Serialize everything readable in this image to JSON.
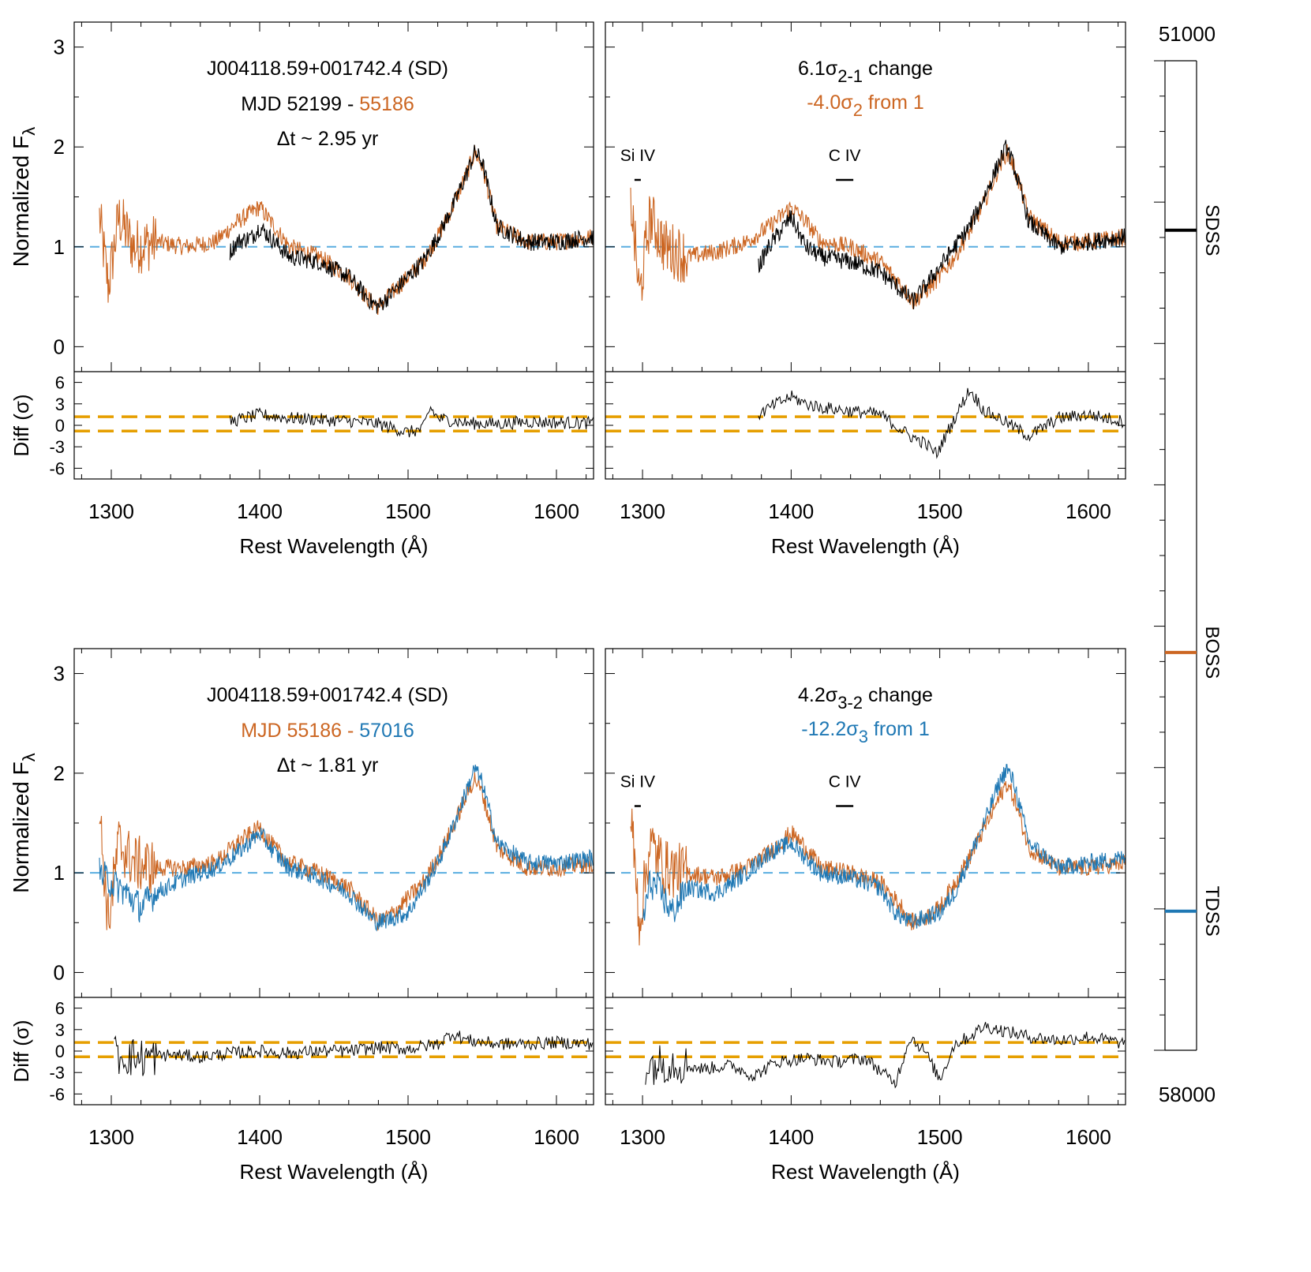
{
  "figure": {
    "timeline": {
      "top_label": "51000",
      "bottom_label": "58000",
      "range": [
        51000,
        58000
      ],
      "markers": [
        {
          "label": "SDSS",
          "mjd": 52199,
          "color": "#000000"
        },
        {
          "label": "BOSS",
          "mjd": 55186,
          "color": "#cc6622"
        },
        {
          "label": "TDSS",
          "mjd": 57016,
          "color": "#1f78b4"
        }
      ]
    }
  },
  "chart_data": [
    {
      "type": "line",
      "title_lines": [
        "J004118.59+001742.4 (SD)",
        "MJD 52199 - 55186",
        "Δt ~ 2.95 yr"
      ],
      "mjd_a": "MJD 52199 -",
      "mjd_b": "55186",
      "ylabel": "Normalized Fλ",
      "xlabel": "Rest Wavelength (Å)",
      "xlim": [
        1275,
        1625
      ],
      "ylim": [
        -0.25,
        3.25
      ],
      "xticks": [
        1300,
        1400,
        1500,
        1600
      ],
      "yticks": [
        0,
        1,
        2,
        3
      ],
      "reference_line": 1,
      "series": [
        {
          "color": "#cc6622",
          "x": [
            1292,
            1298,
            1305,
            1315,
            1330,
            1350,
            1370,
            1385,
            1400,
            1410,
            1420,
            1440,
            1460,
            1475,
            1480,
            1490,
            1500,
            1510,
            1520,
            1530,
            1540,
            1545,
            1550,
            1560,
            1580,
            1600,
            1625
          ],
          "y": [
            1.3,
            0.6,
            1.3,
            1.0,
            1.05,
            1.0,
            1.05,
            1.25,
            1.4,
            1.2,
            1.0,
            0.9,
            0.7,
            0.45,
            0.4,
            0.55,
            0.7,
            0.85,
            1.1,
            1.4,
            1.75,
            1.95,
            1.8,
            1.2,
            1.05,
            1.05,
            1.1
          ]
        },
        {
          "color": "#000000",
          "x": [
            1380,
            1385,
            1395,
            1400,
            1410,
            1420,
            1440,
            1460,
            1475,
            1480,
            1490,
            1500,
            1510,
            1520,
            1530,
            1540,
            1545,
            1550,
            1560,
            1580,
            1600,
            1625
          ],
          "y": [
            0.95,
            1.05,
            1.1,
            1.2,
            1.05,
            0.9,
            0.85,
            0.7,
            0.45,
            0.4,
            0.55,
            0.7,
            0.85,
            1.1,
            1.4,
            1.75,
            1.95,
            1.85,
            1.2,
            1.05,
            1.05,
            1.1
          ]
        }
      ],
      "diff": {
        "ylabel": "Diff (σ)",
        "ylim": [
          -7.5,
          7.5
        ],
        "yticks": [
          -6,
          -3,
          0,
          3,
          6
        ],
        "thresholds": [
          1.2,
          -0.8
        ],
        "series": {
          "color": "#000000",
          "x": [
            1380,
            1400,
            1420,
            1440,
            1460,
            1480,
            1500,
            1510,
            1515,
            1520,
            1540,
            1560,
            1580,
            1600,
            1625
          ],
          "y": [
            0.5,
            1.5,
            1.0,
            0.8,
            0.6,
            0.2,
            -1.0,
            -0.5,
            2.5,
            1.0,
            0.3,
            0.2,
            0.5,
            0.4,
            0.3
          ]
        }
      }
    },
    {
      "type": "line",
      "title_lines": [
        "6.1σ2-1 change",
        "-4.0σ2 from 1"
      ],
      "change_label": "6.1σ",
      "change_sub": "2-1",
      "change_suffix": " change",
      "from_label": "-4.0σ",
      "from_sub": "2",
      "from_suffix": " from 1",
      "line_labels": [
        {
          "text": "Si IV",
          "x": 1293
        },
        {
          "text": "C IV",
          "x": 1436
        }
      ],
      "xlabel": "Rest Wavelength (Å)",
      "xlim": [
        1275,
        1625
      ],
      "ylim": [
        -0.25,
        3.25
      ],
      "xticks": [
        1300,
        1400,
        1500,
        1600
      ],
      "reference_line": 1,
      "series": [
        {
          "color": "#cc6622",
          "x": [
            1292,
            1298,
            1305,
            1315,
            1330,
            1350,
            1370,
            1385,
            1400,
            1410,
            1420,
            1440,
            1460,
            1475,
            1482,
            1490,
            1500,
            1510,
            1520,
            1530,
            1540,
            1545,
            1550,
            1560,
            1580,
            1600,
            1625
          ],
          "y": [
            1.5,
            0.5,
            1.3,
            1.0,
            0.9,
            0.95,
            1.05,
            1.2,
            1.4,
            1.25,
            1.05,
            1.0,
            0.85,
            0.6,
            0.45,
            0.55,
            0.7,
            0.9,
            1.15,
            1.45,
            1.8,
            1.95,
            1.8,
            1.3,
            1.05,
            1.05,
            1.1
          ]
        },
        {
          "color": "#000000",
          "x": [
            1378,
            1385,
            1395,
            1400,
            1410,
            1420,
            1440,
            1460,
            1475,
            1482,
            1490,
            1500,
            1510,
            1520,
            1530,
            1540,
            1545,
            1550,
            1560,
            1580,
            1600,
            1625
          ],
          "y": [
            0.8,
            1.0,
            1.2,
            1.3,
            1.0,
            0.9,
            0.85,
            0.75,
            0.55,
            0.45,
            0.6,
            0.8,
            1.0,
            1.2,
            1.5,
            1.85,
            2.0,
            1.8,
            1.25,
            1.0,
            1.05,
            1.1
          ]
        }
      ],
      "diff": {
        "ylim": [
          -7.5,
          7.5
        ],
        "yticks": [
          -6,
          -3,
          0,
          3,
          6
        ],
        "thresholds": [
          1.2,
          -0.8
        ],
        "series": {
          "color": "#000000",
          "x": [
            1378,
            1390,
            1400,
            1410,
            1420,
            1440,
            1460,
            1470,
            1480,
            1490,
            1498,
            1505,
            1515,
            1520,
            1530,
            1540,
            1560,
            1580,
            1600,
            1625
          ],
          "y": [
            1.5,
            3.0,
            4.0,
            3.0,
            2.5,
            2.0,
            1.5,
            0.0,
            -1.5,
            -2.5,
            -4.0,
            -1.0,
            3.0,
            5.0,
            2.0,
            1.0,
            -1.5,
            1.0,
            1.5,
            0.5
          ]
        }
      }
    },
    {
      "type": "line",
      "title_lines": [
        "J004118.59+001742.4 (SD)",
        "MJD 55186 - 57016",
        "Δt ~ 1.81 yr"
      ],
      "mjd_a": "MJD 55186 -",
      "mjd_b": "57016",
      "ylabel": "Normalized Fλ",
      "xlabel": "Rest Wavelength (Å)",
      "xlim": [
        1275,
        1625
      ],
      "ylim": [
        -0.25,
        3.25
      ],
      "xticks": [
        1300,
        1400,
        1500,
        1600
      ],
      "yticks": [
        0,
        1,
        2,
        3
      ],
      "reference_line": 1,
      "series": [
        {
          "color": "#cc6622",
          "x": [
            1292,
            1298,
            1305,
            1315,
            1330,
            1350,
            1370,
            1385,
            1400,
            1410,
            1420,
            1440,
            1460,
            1475,
            1480,
            1490,
            1500,
            1510,
            1520,
            1530,
            1540,
            1545,
            1550,
            1560,
            1580,
            1600,
            1625
          ],
          "y": [
            1.6,
            0.5,
            1.3,
            1.1,
            1.05,
            1.05,
            1.1,
            1.3,
            1.45,
            1.25,
            1.1,
            1.0,
            0.85,
            0.6,
            0.5,
            0.6,
            0.75,
            0.9,
            1.15,
            1.45,
            1.8,
            1.95,
            1.8,
            1.25,
            1.05,
            1.05,
            1.1
          ]
        },
        {
          "color": "#1f78b4",
          "x": [
            1292,
            1300,
            1310,
            1320,
            1330,
            1350,
            1370,
            1385,
            1400,
            1410,
            1420,
            1440,
            1460,
            1475,
            1480,
            1490,
            1500,
            1510,
            1520,
            1530,
            1540,
            1545,
            1550,
            1560,
            1580,
            1600,
            1625
          ],
          "y": [
            1.0,
            0.9,
            0.8,
            0.65,
            0.8,
            0.95,
            1.05,
            1.2,
            1.4,
            1.2,
            1.05,
            0.95,
            0.8,
            0.55,
            0.5,
            0.55,
            0.6,
            0.85,
            1.1,
            1.45,
            1.85,
            2.05,
            1.9,
            1.3,
            1.1,
            1.1,
            1.15
          ]
        }
      ],
      "diff": {
        "ylabel": "Diff (σ)",
        "ylim": [
          -7.5,
          7.5
        ],
        "yticks": [
          -6,
          -3,
          0,
          3,
          6
        ],
        "thresholds": [
          1.2,
          -0.8
        ],
        "series": {
          "color": "#000000",
          "x": [
            1302,
            1320,
            1340,
            1360,
            1380,
            1400,
            1420,
            1440,
            1460,
            1480,
            1500,
            1520,
            1530,
            1540,
            1560,
            1580,
            1600,
            1625
          ],
          "y": [
            -0.5,
            -1.0,
            -0.5,
            -0.8,
            -0.3,
            0.0,
            -0.3,
            0.0,
            0.0,
            0.5,
            0.3,
            1.0,
            2.5,
            1.5,
            1.0,
            1.0,
            1.2,
            1.0
          ]
        }
      }
    },
    {
      "type": "line",
      "title_lines": [
        "4.2σ3-2 change",
        "-12.2σ3 from 1"
      ],
      "change_label": "4.2σ",
      "change_sub": "3-2",
      "change_suffix": " change",
      "from_label": "-12.2σ",
      "from_sub": "3",
      "from_suffix": " from 1",
      "line_labels": [
        {
          "text": "Si IV",
          "x": 1293
        },
        {
          "text": "C IV",
          "x": 1436
        }
      ],
      "xlabel": "Rest Wavelength (Å)",
      "xlim": [
        1275,
        1625
      ],
      "ylim": [
        -0.25,
        3.25
      ],
      "xticks": [
        1300,
        1400,
        1500,
        1600
      ],
      "reference_line": 1,
      "series": [
        {
          "color": "#cc6622",
          "x": [
            1292,
            1298,
            1305,
            1315,
            1330,
            1350,
            1370,
            1385,
            1400,
            1410,
            1420,
            1440,
            1460,
            1475,
            1480,
            1490,
            1500,
            1510,
            1520,
            1530,
            1540,
            1545,
            1550,
            1560,
            1580,
            1600,
            1625
          ],
          "y": [
            1.6,
            0.5,
            1.3,
            1.05,
            1.0,
            0.95,
            1.05,
            1.2,
            1.4,
            1.25,
            1.05,
            1.0,
            0.9,
            0.65,
            0.5,
            0.55,
            0.65,
            0.9,
            1.15,
            1.45,
            1.75,
            1.9,
            1.75,
            1.25,
            1.05,
            1.05,
            1.1
          ]
        },
        {
          "color": "#1f78b4",
          "x": [
            1300,
            1305,
            1310,
            1320,
            1330,
            1350,
            1370,
            1385,
            1400,
            1410,
            1420,
            1440,
            1460,
            1470,
            1480,
            1490,
            1500,
            1510,
            1520,
            1530,
            1540,
            1545,
            1550,
            1560,
            1580,
            1600,
            1625
          ],
          "y": [
            0.5,
            0.9,
            0.85,
            0.6,
            0.85,
            0.8,
            1.0,
            1.2,
            1.3,
            1.15,
            1.0,
            0.95,
            0.85,
            0.6,
            0.5,
            0.55,
            0.6,
            0.8,
            1.15,
            1.5,
            1.9,
            2.05,
            1.9,
            1.3,
            1.05,
            1.1,
            1.15
          ]
        }
      ],
      "diff": {
        "ylim": [
          -7.5,
          7.5
        ],
        "yticks": [
          -6,
          -3,
          0,
          3,
          6
        ],
        "thresholds": [
          1.2,
          -0.8
        ],
        "series": {
          "color": "#000000",
          "x": [
            1302,
            1320,
            1340,
            1360,
            1375,
            1390,
            1410,
            1430,
            1450,
            1470,
            1480,
            1490,
            1500,
            1510,
            1520,
            1530,
            1540,
            1560,
            1580,
            1600,
            1625
          ],
          "y": [
            -2.0,
            -1.5,
            -2.5,
            -2.0,
            -3.5,
            -1.5,
            -1.0,
            -1.5,
            -1.0,
            -4.5,
            2.0,
            0.0,
            -4.0,
            1.0,
            2.0,
            3.5,
            3.0,
            2.0,
            1.5,
            2.0,
            1.0
          ]
        }
      }
    }
  ]
}
